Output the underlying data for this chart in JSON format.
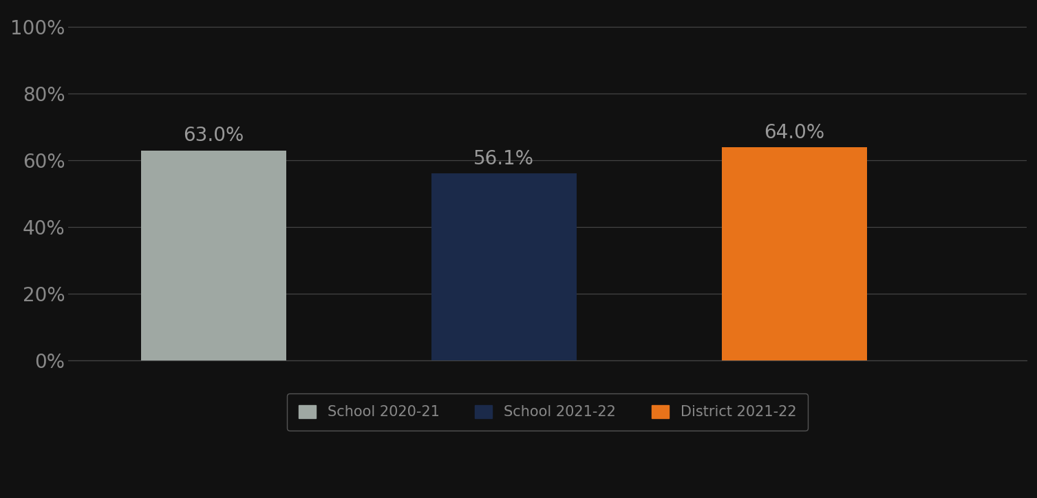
{
  "categories": [
    "School 2020-21",
    "School 2021-22",
    "District 2021-22"
  ],
  "values": [
    63.0,
    56.1,
    64.0
  ],
  "bar_colors": [
    "#9fa8a3",
    "#1b2a4a",
    "#e8731a"
  ],
  "label_color": "#999999",
  "label_fontsize": 20,
  "ytick_labels": [
    "0%",
    "20%",
    "40%",
    "60%",
    "80%",
    "100%"
  ],
  "ytick_values": [
    0,
    20,
    40,
    60,
    80,
    100
  ],
  "ylim": [
    0,
    105
  ],
  "grid_color": "#444444",
  "background_color": "#111111",
  "bar_width": 0.5,
  "legend_labels": [
    "School 2020-21",
    "School 2021-22",
    "District 2021-22"
  ],
  "legend_fontsize": 15,
  "tick_fontsize": 20,
  "tick_color": "#888888"
}
